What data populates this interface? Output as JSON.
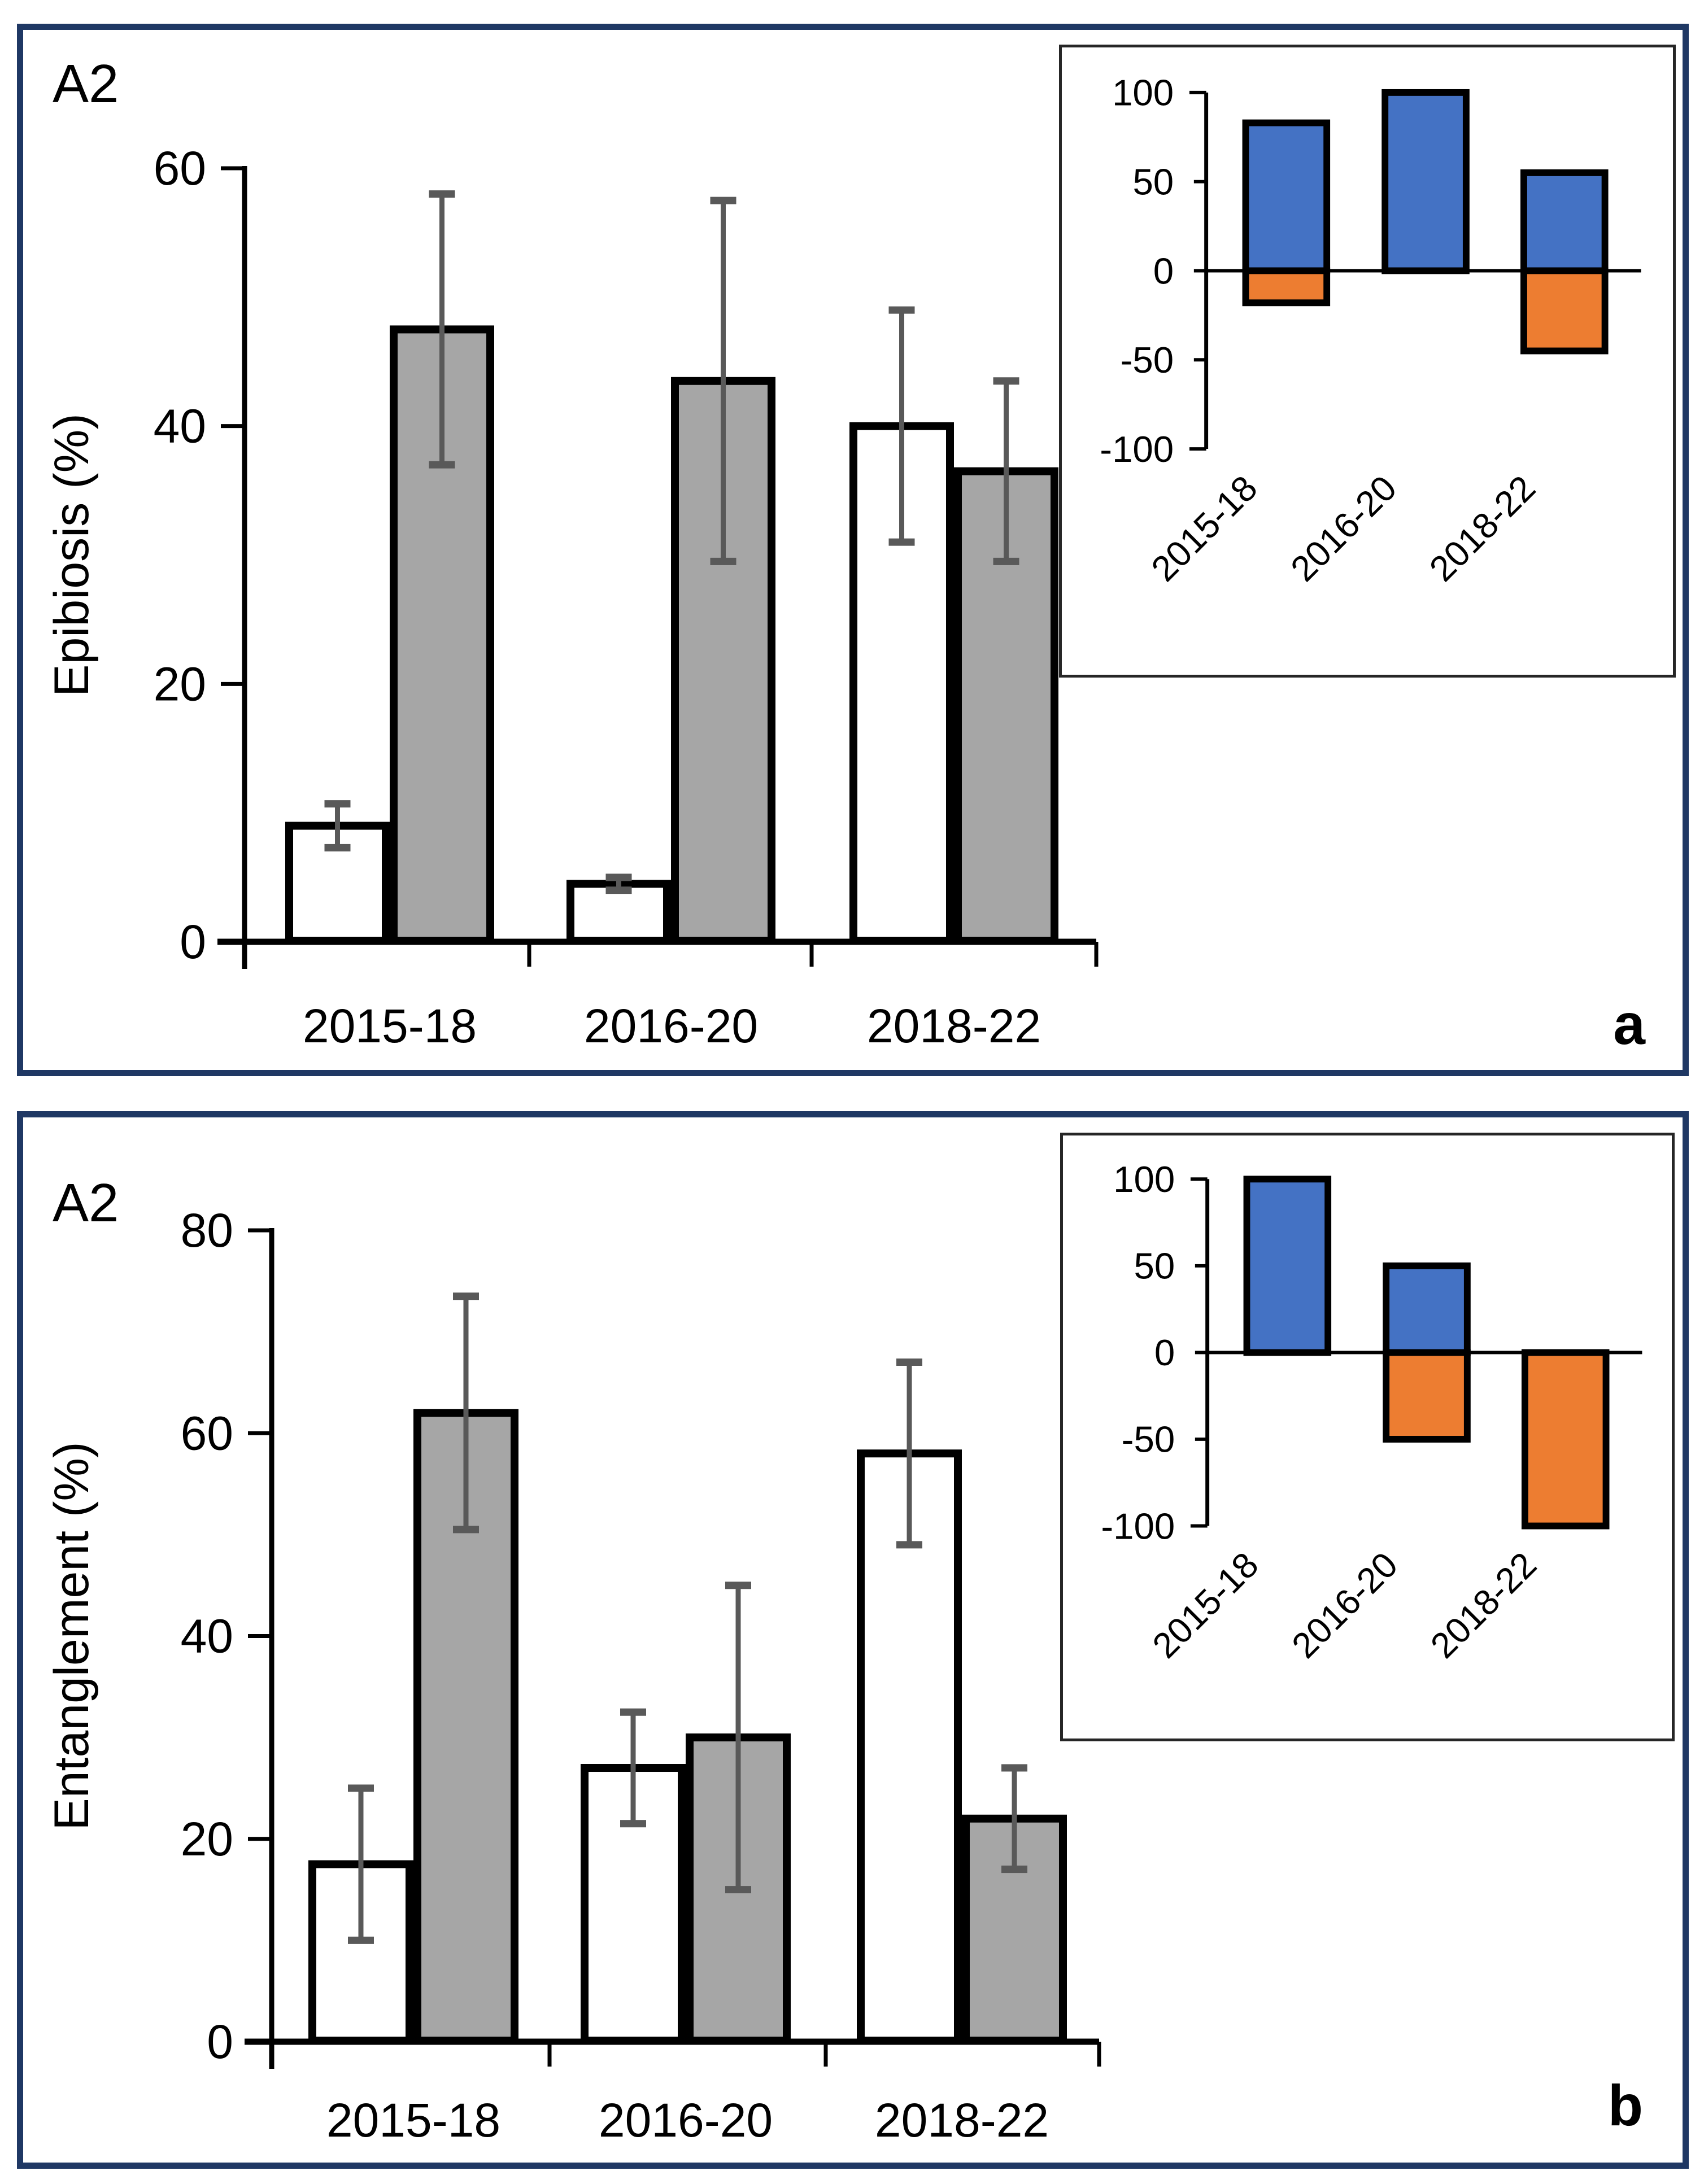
{
  "colors": {
    "panel_border": "#1F3864",
    "inset_border": "#262626",
    "axis": "#000000",
    "bar_outline": "#000000",
    "bar_white": "#FFFFFF",
    "bar_gray": "#A6A6A6",
    "bar_blue": "#4472C4",
    "bar_orange": "#ED7D31",
    "error_bar": "#595959",
    "text": "#000000"
  },
  "panels": [
    {
      "letter": "a",
      "corner_label": "A2"
    },
    {
      "letter": "b",
      "corner_label": "A2"
    }
  ],
  "chart_data": [
    {
      "id": "panel_a_main",
      "panel": "a",
      "role": "main",
      "type": "bar",
      "title": "A2",
      "xlabel": "",
      "ylabel": "Epibiosis (%)",
      "ylim": [
        0,
        60
      ],
      "yticks": [
        0,
        20,
        40,
        60
      ],
      "categories": [
        "2015-18",
        "2016-20",
        "2018-22"
      ],
      "series": [
        {
          "name": "white-bars",
          "fill": "#FFFFFF",
          "values": [
            9,
            4.5,
            40
          ],
          "errors": [
            1.7,
            0.5,
            9
          ]
        },
        {
          "name": "gray-bars",
          "fill": "#A6A6A6",
          "values": [
            47.5,
            43.5,
            36.5
          ],
          "errors": [
            10.5,
            14,
            7
          ]
        }
      ],
      "error_bars": true,
      "legend": "none",
      "grid": false
    },
    {
      "id": "panel_a_inset",
      "panel": "a",
      "role": "inset",
      "type": "bar",
      "title": "",
      "xlabel": "",
      "ylabel": "",
      "ylim": [
        -100,
        100
      ],
      "yticks": [
        100,
        50,
        0,
        -50,
        -100
      ],
      "categories": [
        "2015-18",
        "2016-20",
        "2018-22"
      ],
      "series": [
        {
          "name": "blue-bars",
          "fill": "#4472C4",
          "values": [
            83,
            100,
            55
          ]
        },
        {
          "name": "orange-bars",
          "fill": "#ED7D31",
          "values": [
            -18,
            0,
            -45
          ]
        }
      ],
      "error_bars": false,
      "legend": "none",
      "grid": false,
      "xtick_rotation": 45
    },
    {
      "id": "panel_b_main",
      "panel": "b",
      "role": "main",
      "type": "bar",
      "title": "A2",
      "xlabel": "",
      "ylabel": "Entanglement (%)",
      "ylim": [
        0,
        80
      ],
      "yticks": [
        0,
        20,
        40,
        60,
        80
      ],
      "categories": [
        "2015-18",
        "2016-20",
        "2018-22"
      ],
      "series": [
        {
          "name": "white-bars",
          "fill": "#FFFFFF",
          "values": [
            17.5,
            27,
            58
          ],
          "errors": [
            7.5,
            5.5,
            9
          ]
        },
        {
          "name": "gray-bars",
          "fill": "#A6A6A6",
          "values": [
            62,
            30,
            22
          ],
          "errors": [
            11.5,
            15,
            5
          ]
        }
      ],
      "error_bars": true,
      "legend": "none",
      "grid": false
    },
    {
      "id": "panel_b_inset",
      "panel": "b",
      "role": "inset",
      "type": "bar",
      "title": "",
      "xlabel": "",
      "ylabel": "",
      "ylim": [
        -100,
        100
      ],
      "yticks": [
        100,
        50,
        0,
        -50,
        -100
      ],
      "categories": [
        "2015-18",
        "2016-20",
        "2018-22"
      ],
      "series": [
        {
          "name": "blue-bars",
          "fill": "#4472C4",
          "values": [
            100,
            50,
            0
          ]
        },
        {
          "name": "orange-bars",
          "fill": "#ED7D31",
          "values": [
            0,
            -50,
            -100
          ]
        }
      ],
      "error_bars": false,
      "legend": "none",
      "grid": false,
      "xtick_rotation": 45
    }
  ]
}
